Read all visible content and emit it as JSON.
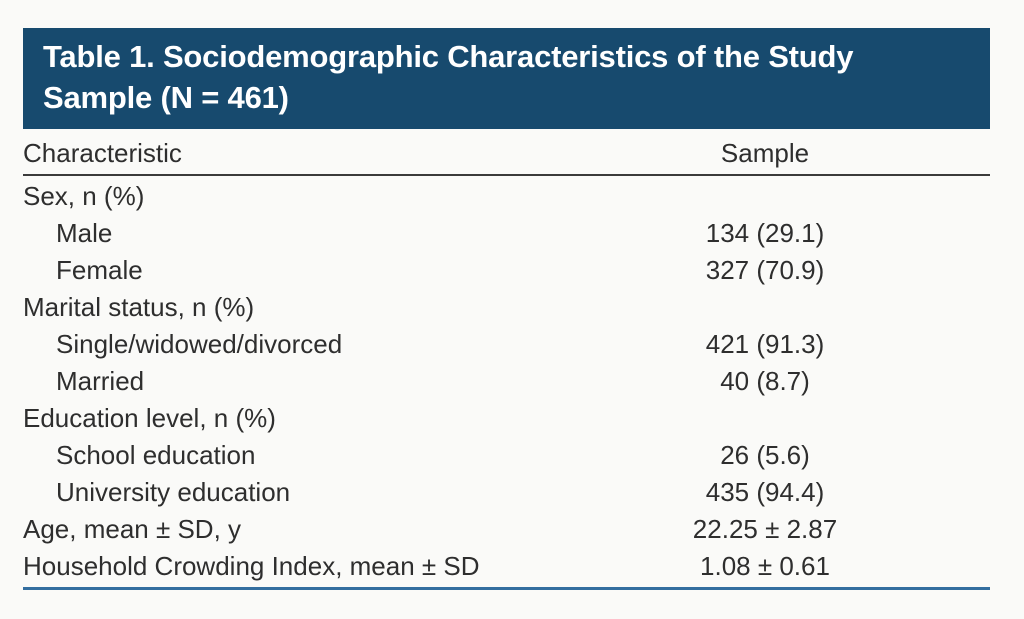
{
  "table": {
    "title_line1": "Table 1. Sociodemographic Characteristics of the Study",
    "title_line2": "Sample (N = 461)",
    "title_full": "Table 1. Sociodemographic Characteristics of the Study Sample (N = 461)",
    "columns": [
      "Characteristic",
      "Sample"
    ],
    "rows": [
      {
        "label": "Sex, n (%)",
        "value": "",
        "indent": false
      },
      {
        "label": "Male",
        "value": "134 (29.1)",
        "indent": true
      },
      {
        "label": "Female",
        "value": "327 (70.9)",
        "indent": true
      },
      {
        "label": "Marital status, n (%)",
        "value": "",
        "indent": false
      },
      {
        "label": "Single/widowed/divorced",
        "value": "421 (91.3)",
        "indent": true
      },
      {
        "label": "Married",
        "value": "40 (8.7)",
        "indent": true
      },
      {
        "label": "Education level, n (%)",
        "value": "",
        "indent": false
      },
      {
        "label": "School education",
        "value": "26 (5.6)",
        "indent": true
      },
      {
        "label": "University education",
        "value": "435 (94.4)",
        "indent": true
      },
      {
        "label": "Age, mean ± SD, y",
        "value": "22.25 ± 2.87",
        "indent": false
      },
      {
        "label": "Household Crowding Index, mean ± SD",
        "value": "1.08 ± 0.61",
        "indent": false
      }
    ],
    "colors": {
      "page_bg": "#fafaf8",
      "band_bg": "#174a6e",
      "band_text": "#ffffff",
      "body_text": "#2e2e2e",
      "rule_dark": "#3b3b3b",
      "rule_blue": "#336e9f"
    }
  }
}
